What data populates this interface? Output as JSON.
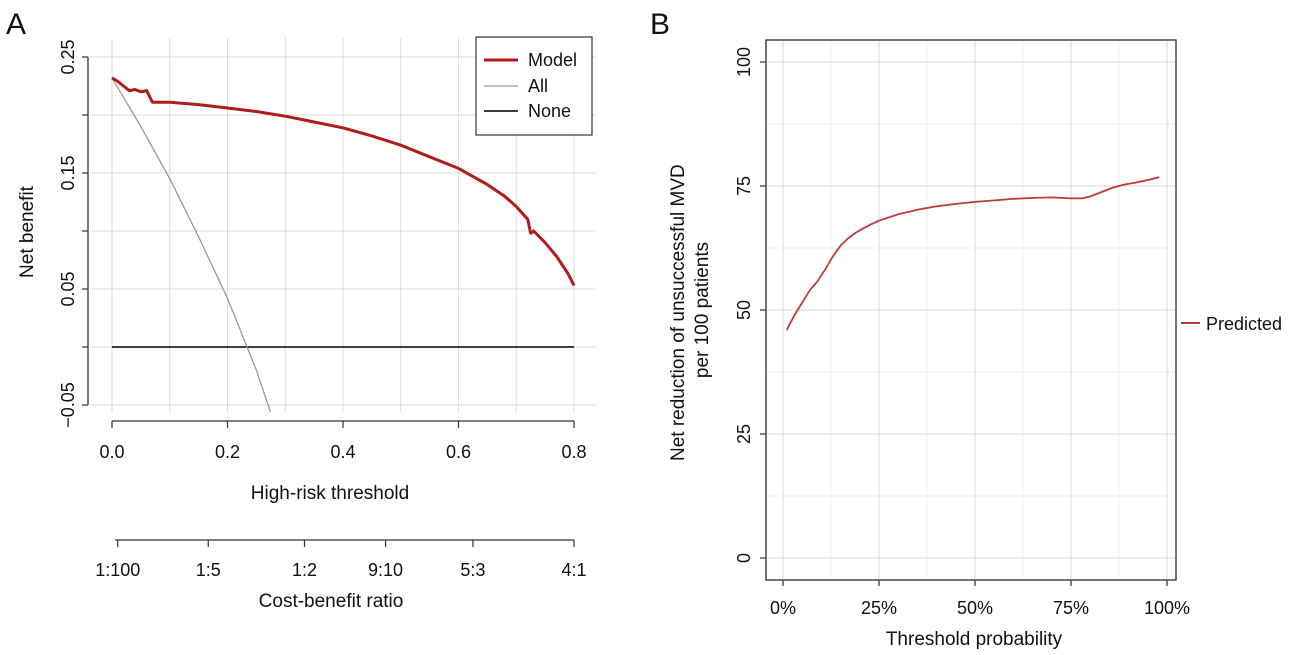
{
  "colors": {
    "model": "#b01c1c",
    "all": "#9a9a9a",
    "none": "#222222",
    "predicted": "#c0393b",
    "grid": "#dcdcdc",
    "axis": "#333333"
  },
  "chart_data": [
    {
      "panel": "A",
      "type": "line",
      "xlabel": "High-risk threshold",
      "ylabel": "Net benefit",
      "xlim": [
        0,
        0.8
      ],
      "ylim": [
        -0.05,
        0.25
      ],
      "x_ticks": [
        "0.0",
        "0.2",
        "0.4",
        "0.6",
        "0.8"
      ],
      "y_ticks": [
        "−0.05",
        "0.05",
        "0.15",
        "0.25"
      ],
      "secondary_axis": {
        "label": "Cost-benefit ratio",
        "ticks": [
          "1:100",
          "1:5",
          "1:2",
          "9:10",
          "5:3",
          "4:1"
        ]
      },
      "legend": {
        "position": "top-right",
        "entries": [
          "Model",
          "All",
          "None"
        ]
      },
      "grid": true,
      "series": [
        {
          "name": "Model",
          "x": [
            0.0,
            0.01,
            0.02,
            0.03,
            0.04,
            0.05,
            0.06,
            0.07,
            0.1,
            0.15,
            0.2,
            0.25,
            0.3,
            0.35,
            0.4,
            0.45,
            0.5,
            0.55,
            0.6,
            0.65,
            0.68,
            0.7,
            0.72,
            0.725,
            0.73,
            0.75,
            0.77,
            0.79,
            0.8
          ],
          "y": [
            0.232,
            0.229,
            0.225,
            0.221,
            0.222,
            0.22,
            0.221,
            0.211,
            0.211,
            0.209,
            0.206,
            0.203,
            0.199,
            0.194,
            0.189,
            0.182,
            0.174,
            0.164,
            0.154,
            0.14,
            0.13,
            0.121,
            0.11,
            0.098,
            0.1,
            0.09,
            0.078,
            0.063,
            0.053
          ]
        },
        {
          "name": "All",
          "x": [
            0.0,
            0.05,
            0.1,
            0.15,
            0.2,
            0.25,
            0.277
          ],
          "y": [
            0.232,
            0.19,
            0.145,
            0.095,
            0.042,
            -0.02,
            -0.06
          ]
        },
        {
          "name": "None",
          "x": [
            0.0,
            0.8
          ],
          "y": [
            0.0,
            0.0
          ]
        }
      ]
    },
    {
      "panel": "B",
      "type": "line",
      "xlabel": "Threshold probability",
      "ylabel": "Net reduction of unsuccessful MVD per 100 patients",
      "xlim": [
        0,
        100
      ],
      "ylim": [
        0,
        100
      ],
      "x_ticks": [
        "0%",
        "25%",
        "50%",
        "75%",
        "100%"
      ],
      "y_ticks": [
        "0",
        "25",
        "50",
        "75",
        "100"
      ],
      "legend": {
        "position": "right",
        "entries": [
          "Predicted"
        ]
      },
      "grid": true,
      "series": [
        {
          "name": "Predicted",
          "x": [
            1,
            3,
            5,
            7,
            9,
            11,
            13,
            15,
            17,
            19,
            21,
            23,
            25,
            30,
            35,
            40,
            45,
            50,
            55,
            60,
            65,
            70,
            75,
            78,
            80,
            83,
            86,
            89,
            92,
            95,
            98
          ],
          "y": [
            46,
            49,
            51.5,
            54,
            55.8,
            58.2,
            60.8,
            63,
            64.5,
            65.6,
            66.5,
            67.3,
            68,
            69.3,
            70.2,
            70.9,
            71.4,
            71.8,
            72.1,
            72.4,
            72.6,
            72.7,
            72.5,
            72.5,
            72.9,
            73.8,
            74.7,
            75.3,
            75.7,
            76.2,
            76.8
          ]
        }
      ]
    }
  ]
}
